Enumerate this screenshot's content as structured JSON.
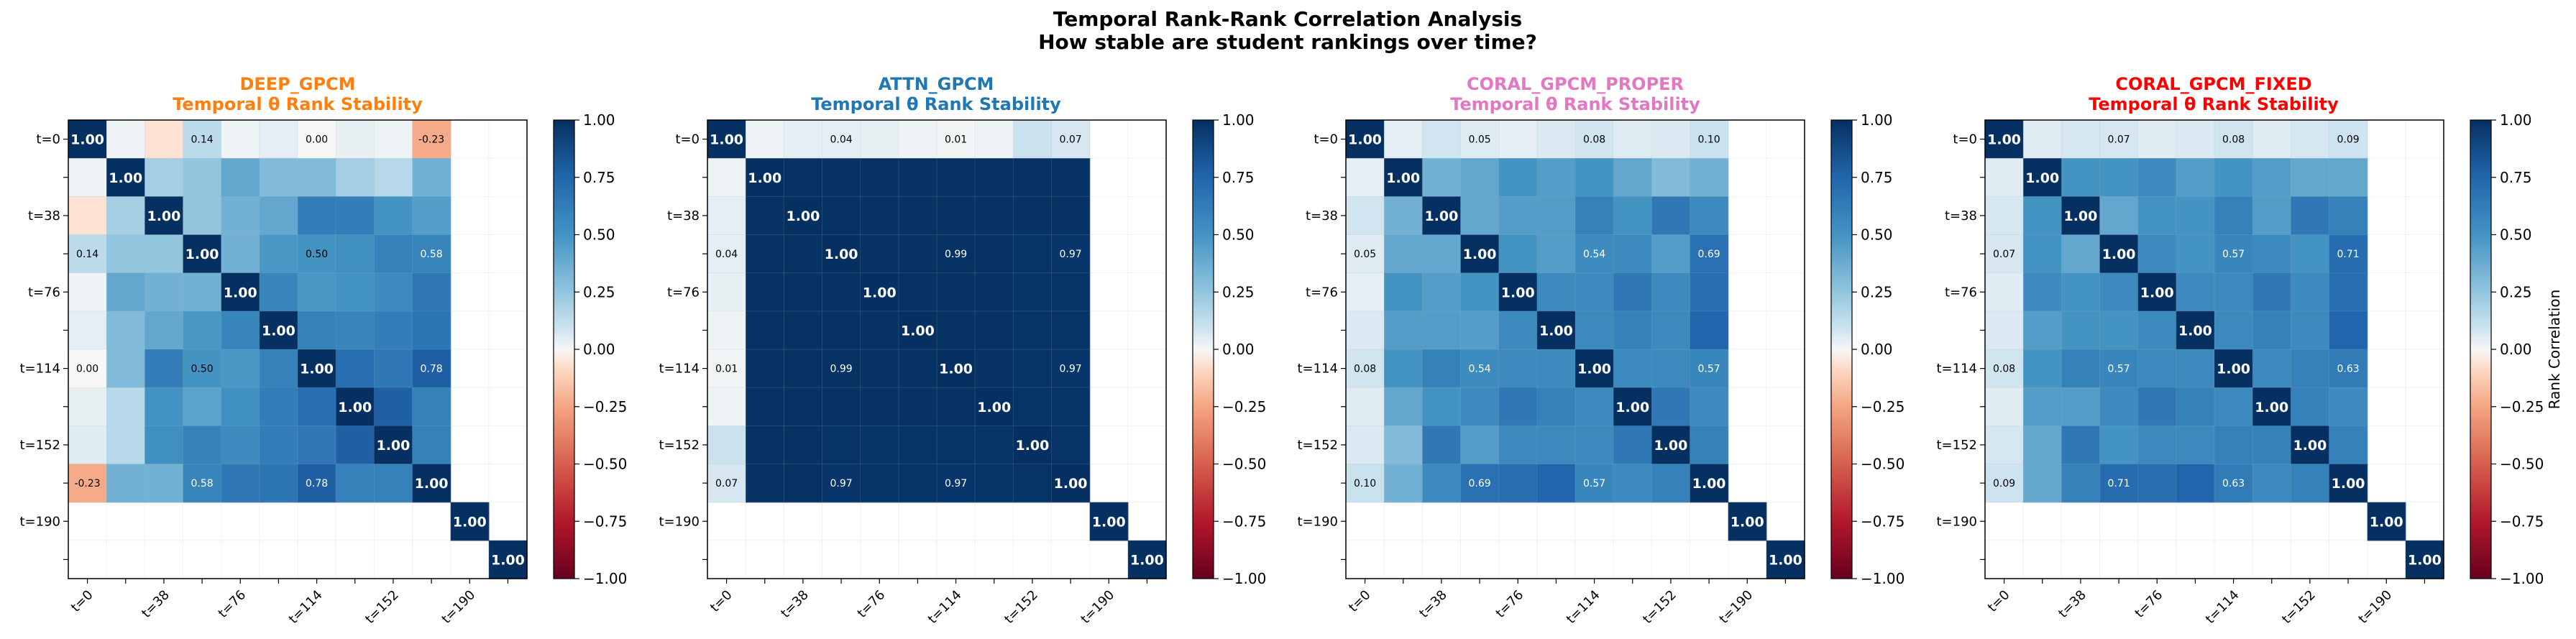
{
  "figure": {
    "title": "Temporal Rank-Rank Correlation Analysis",
    "subtitle": "How stable are student rankings over time?"
  },
  "chart_data": [
    {
      "type": "heatmap",
      "model": "DEEP_GPCM",
      "title": "Temporal θ Rank Stability",
      "title_color": "#ff7f0e",
      "ticks": [
        "t=0",
        "t=38",
        "t=76",
        "t=114",
        "t=152",
        "t=190"
      ],
      "size": 12,
      "colormap": "RdBu",
      "clim": [
        -1,
        1
      ],
      "colorbar_ticks": [
        "1.00",
        "0.75",
        "0.50",
        "0.25",
        "0.00",
        "−0.25",
        "−0.50",
        "−0.75",
        "−1.00"
      ],
      "matrix": [
        [
          1.0,
          0.02,
          -0.06,
          0.14,
          0.02,
          0.04,
          0.0,
          0.03,
          0.02,
          -0.23,
          null,
          null
        ],
        [
          0.02,
          1.0,
          0.2,
          0.25,
          0.4,
          0.3,
          0.3,
          0.2,
          0.15,
          0.35,
          null,
          null
        ],
        [
          -0.06,
          0.2,
          1.0,
          0.25,
          0.35,
          0.4,
          0.62,
          0.62,
          0.5,
          0.45,
          null,
          null
        ],
        [
          0.14,
          0.25,
          0.25,
          1.0,
          0.35,
          0.48,
          0.5,
          0.52,
          0.6,
          0.58,
          null,
          null
        ],
        [
          0.02,
          0.4,
          0.35,
          0.35,
          1.0,
          0.58,
          0.48,
          0.5,
          0.55,
          0.65,
          null,
          null
        ],
        [
          0.04,
          0.3,
          0.4,
          0.48,
          0.58,
          1.0,
          0.6,
          0.58,
          0.62,
          0.66,
          null,
          null
        ],
        [
          0.0,
          0.3,
          0.62,
          0.5,
          0.48,
          0.6,
          1.0,
          0.7,
          0.65,
          0.78,
          null,
          null
        ],
        [
          0.03,
          0.15,
          0.5,
          0.42,
          0.52,
          0.62,
          0.7,
          1.0,
          0.78,
          0.6,
          null,
          null
        ],
        [
          0.05,
          0.15,
          0.52,
          0.6,
          0.55,
          0.62,
          0.65,
          0.78,
          1.0,
          0.6,
          null,
          null
        ],
        [
          -0.23,
          0.35,
          0.35,
          0.58,
          0.65,
          0.66,
          0.78,
          0.6,
          0.6,
          1.0,
          null,
          null
        ],
        [
          null,
          null,
          null,
          null,
          null,
          null,
          null,
          null,
          null,
          null,
          1.0,
          null
        ],
        [
          null,
          null,
          null,
          null,
          null,
          null,
          null,
          null,
          null,
          null,
          null,
          1.0
        ]
      ]
    },
    {
      "type": "heatmap",
      "model": "ATTN_GPCM",
      "title": "Temporal θ Rank Stability",
      "title_color": "#1f77b4",
      "ticks": [
        "t=0",
        "t=38",
        "t=76",
        "t=114",
        "t=152",
        "t=190"
      ],
      "size": 12,
      "colormap": "RdBu",
      "clim": [
        -1,
        1
      ],
      "colorbar_ticks": [
        "1.00",
        "0.75",
        "0.50",
        "0.25",
        "0.00",
        "−0.25",
        "−0.50",
        "−0.75",
        "−1.00"
      ],
      "matrix": [
        [
          1.0,
          0.02,
          0.04,
          0.04,
          0.03,
          0.02,
          0.01,
          0.02,
          0.1,
          0.07,
          null,
          null
        ],
        [
          0.02,
          1.0,
          0.99,
          0.99,
          0.99,
          0.99,
          0.99,
          0.99,
          0.99,
          0.99,
          null,
          null
        ],
        [
          0.04,
          0.99,
          1.0,
          0.99,
          0.99,
          0.99,
          0.99,
          0.99,
          0.99,
          0.99,
          null,
          null
        ],
        [
          0.04,
          0.99,
          0.99,
          1.0,
          0.99,
          0.99,
          0.99,
          0.99,
          0.98,
          0.97,
          null,
          null
        ],
        [
          0.03,
          0.99,
          0.99,
          0.99,
          1.0,
          0.99,
          0.99,
          0.99,
          0.98,
          0.98,
          null,
          null
        ],
        [
          0.02,
          0.99,
          0.99,
          0.99,
          0.99,
          1.0,
          0.99,
          0.99,
          0.98,
          0.98,
          null,
          null
        ],
        [
          0.01,
          0.99,
          0.99,
          0.99,
          0.99,
          0.99,
          1.0,
          0.99,
          0.98,
          0.97,
          null,
          null
        ],
        [
          0.02,
          0.99,
          0.99,
          0.99,
          0.99,
          0.99,
          0.99,
          1.0,
          0.98,
          0.98,
          null,
          null
        ],
        [
          0.1,
          0.99,
          0.99,
          0.98,
          0.98,
          0.98,
          0.98,
          0.98,
          1.0,
          0.98,
          null,
          null
        ],
        [
          0.07,
          0.99,
          0.99,
          0.97,
          0.98,
          0.98,
          0.97,
          0.98,
          0.98,
          1.0,
          null,
          null
        ],
        [
          null,
          null,
          null,
          null,
          null,
          null,
          null,
          null,
          null,
          null,
          1.0,
          null
        ],
        [
          null,
          null,
          null,
          null,
          null,
          null,
          null,
          null,
          null,
          null,
          null,
          1.0
        ]
      ]
    },
    {
      "type": "heatmap",
      "model": "CORAL_GPCM_PROPER",
      "title": "Temporal θ Rank Stability",
      "title_color": "#e377c2",
      "ticks": [
        "t=0",
        "t=38",
        "t=76",
        "t=114",
        "t=152",
        "t=190"
      ],
      "size": 12,
      "colormap": "RdBu",
      "clim": [
        -1,
        1
      ],
      "colorbar_ticks": [
        "1.00",
        "0.75",
        "0.50",
        "0.25",
        "0.00",
        "−0.25",
        "−0.50",
        "−0.75",
        "−1.00"
      ],
      "matrix": [
        [
          1.0,
          0.04,
          0.08,
          0.05,
          0.04,
          0.06,
          0.08,
          0.05,
          0.06,
          0.1,
          null,
          null
        ],
        [
          0.04,
          1.0,
          0.35,
          0.4,
          0.5,
          0.45,
          0.5,
          0.4,
          0.3,
          0.35,
          null,
          null
        ],
        [
          0.08,
          0.35,
          1.0,
          0.4,
          0.45,
          0.45,
          0.6,
          0.5,
          0.65,
          0.55,
          null,
          null
        ],
        [
          0.05,
          0.4,
          0.4,
          1.0,
          0.5,
          0.45,
          0.54,
          0.55,
          0.45,
          0.69,
          null,
          null
        ],
        [
          0.04,
          0.5,
          0.45,
          0.5,
          1.0,
          0.55,
          0.55,
          0.65,
          0.55,
          0.7,
          null,
          null
        ],
        [
          0.06,
          0.45,
          0.45,
          0.45,
          0.55,
          1.0,
          0.55,
          0.6,
          0.55,
          0.75,
          null,
          null
        ],
        [
          0.08,
          0.5,
          0.6,
          0.54,
          0.55,
          0.55,
          1.0,
          0.55,
          0.55,
          0.57,
          null,
          null
        ],
        [
          0.05,
          0.4,
          0.5,
          0.55,
          0.65,
          0.6,
          0.55,
          1.0,
          0.65,
          0.55,
          null,
          null
        ],
        [
          0.06,
          0.3,
          0.65,
          0.45,
          0.55,
          0.55,
          0.55,
          0.65,
          1.0,
          0.6,
          null,
          null
        ],
        [
          0.1,
          0.35,
          0.55,
          0.69,
          0.7,
          0.75,
          0.57,
          0.55,
          0.6,
          1.0,
          null,
          null
        ],
        [
          null,
          null,
          null,
          null,
          null,
          null,
          null,
          null,
          null,
          null,
          1.0,
          null
        ],
        [
          null,
          null,
          null,
          null,
          null,
          null,
          null,
          null,
          null,
          null,
          null,
          1.0
        ]
      ]
    },
    {
      "type": "heatmap",
      "model": "CORAL_GPCM_FIXED",
      "title": "Temporal θ Rank Stability",
      "title_color": "#ff0000",
      "ticks": [
        "t=0",
        "t=38",
        "t=76",
        "t=114",
        "t=152",
        "t=190"
      ],
      "size": 12,
      "colormap": "RdBu",
      "clim": [
        -1,
        1
      ],
      "colorbar_ticks": [
        "1.00",
        "0.75",
        "0.50",
        "0.25",
        "0.00",
        "−0.25",
        "−0.50",
        "−0.75",
        "−1.00"
      ],
      "colorbar_label": "Rank Correlation",
      "matrix": [
        [
          1.0,
          0.05,
          0.07,
          0.07,
          0.05,
          0.06,
          0.08,
          0.05,
          0.07,
          0.09,
          null,
          null
        ],
        [
          0.05,
          1.0,
          0.5,
          0.5,
          0.55,
          0.45,
          0.5,
          0.45,
          0.4,
          0.4,
          null,
          null
        ],
        [
          0.07,
          0.5,
          1.0,
          0.4,
          0.5,
          0.5,
          0.6,
          0.45,
          0.65,
          0.6,
          null,
          null
        ],
        [
          0.07,
          0.5,
          0.4,
          1.0,
          0.55,
          0.5,
          0.57,
          0.55,
          0.5,
          0.71,
          null,
          null
        ],
        [
          0.05,
          0.55,
          0.5,
          0.55,
          1.0,
          0.55,
          0.55,
          0.65,
          0.55,
          0.7,
          null,
          null
        ],
        [
          0.06,
          0.45,
          0.5,
          0.5,
          0.55,
          1.0,
          0.55,
          0.6,
          0.55,
          0.75,
          null,
          null
        ],
        [
          0.08,
          0.5,
          0.6,
          0.57,
          0.55,
          0.55,
          1.0,
          0.55,
          0.6,
          0.63,
          null,
          null
        ],
        [
          0.05,
          0.45,
          0.45,
          0.55,
          0.65,
          0.6,
          0.55,
          1.0,
          0.6,
          0.55,
          null,
          null
        ],
        [
          0.07,
          0.4,
          0.65,
          0.5,
          0.55,
          0.55,
          0.6,
          0.6,
          1.0,
          0.6,
          null,
          null
        ],
        [
          0.09,
          0.4,
          0.6,
          0.71,
          0.7,
          0.75,
          0.63,
          0.55,
          0.6,
          1.0,
          null,
          null
        ],
        [
          null,
          null,
          null,
          null,
          null,
          null,
          null,
          null,
          null,
          null,
          1.0,
          null
        ],
        [
          null,
          null,
          null,
          null,
          null,
          null,
          null,
          null,
          null,
          null,
          null,
          1.0
        ]
      ]
    }
  ]
}
